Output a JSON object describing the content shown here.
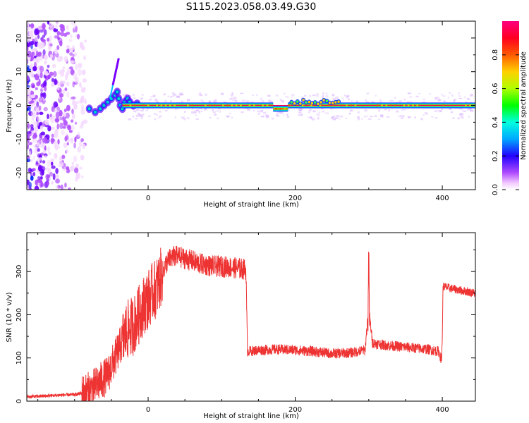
{
  "chart_data": [
    {
      "type": "heatmap",
      "title": "S115.2023.058.03.49.G30",
      "xlabel": "Height of straight line (km)",
      "ylabel": "Frequency (Hz)",
      "xlim": [
        -165,
        445
      ],
      "ylim": [
        -25,
        25
      ],
      "xticks": [
        0,
        200,
        400
      ],
      "yticks": [
        -20,
        -10,
        0,
        10,
        20
      ],
      "colorbar": {
        "label": "Normalized spectral amplitude",
        "range": [
          0,
          1
        ],
        "ticks": [
          0.0,
          0.2,
          0.4,
          0.6,
          0.8
        ],
        "tick_labels": [
          "0.0",
          "0.2",
          "0.4",
          "0.6",
          "0.8"
        ],
        "colors": [
          "#ffffff",
          "#ff55ff",
          "#8800ff",
          "#0000ff",
          "#00ffff",
          "#00ff00",
          "#ffff00",
          "#ff8800",
          "#ff0000",
          "#ff0066"
        ]
      },
      "features": {
        "noise_region_x": [
          -165,
          -85
        ],
        "disturbed_region_x": [
          -85,
          -35
        ],
        "signal_line_freq": 0,
        "dip_region": {
          "x": [
            170,
            190
          ],
          "freq": -1
        },
        "bump_region": {
          "x": [
            195,
            260
          ],
          "freq": 1
        }
      }
    },
    {
      "type": "line",
      "xlabel": "Height of straight line (km)",
      "ylabel": "SNR (10 * v/v)",
      "xlim": [
        -165,
        445
      ],
      "ylim": [
        0,
        390
      ],
      "xticks": [
        0,
        200,
        400
      ],
      "yticks": [
        0,
        100,
        200,
        300
      ],
      "color": "#ee3333",
      "x": [
        -165,
        -140,
        -120,
        -100,
        -85,
        -75,
        -65,
        -55,
        -50,
        -45,
        -40,
        -35,
        -30,
        -25,
        -20,
        -15,
        -10,
        -5,
        0,
        5,
        10,
        15,
        20,
        25,
        30,
        35,
        40,
        50,
        60,
        70,
        80,
        90,
        100,
        110,
        120,
        133,
        135,
        150,
        175,
        200,
        225,
        250,
        275,
        295,
        299,
        300,
        301,
        305,
        320,
        350,
        380,
        395,
        399,
        400,
        401,
        420,
        445
      ],
      "y": [
        10,
        12,
        14,
        15,
        20,
        30,
        45,
        60,
        80,
        100,
        120,
        140,
        160,
        170,
        175,
        190,
        210,
        225,
        235,
        250,
        260,
        275,
        300,
        320,
        330,
        335,
        335,
        330,
        325,
        318,
        315,
        312,
        312,
        310,
        308,
        305,
        115,
        118,
        120,
        118,
        115,
        110,
        112,
        118,
        200,
        320,
        200,
        135,
        130,
        125,
        120,
        115,
        95,
        150,
        265,
        258,
        250
      ]
    }
  ]
}
